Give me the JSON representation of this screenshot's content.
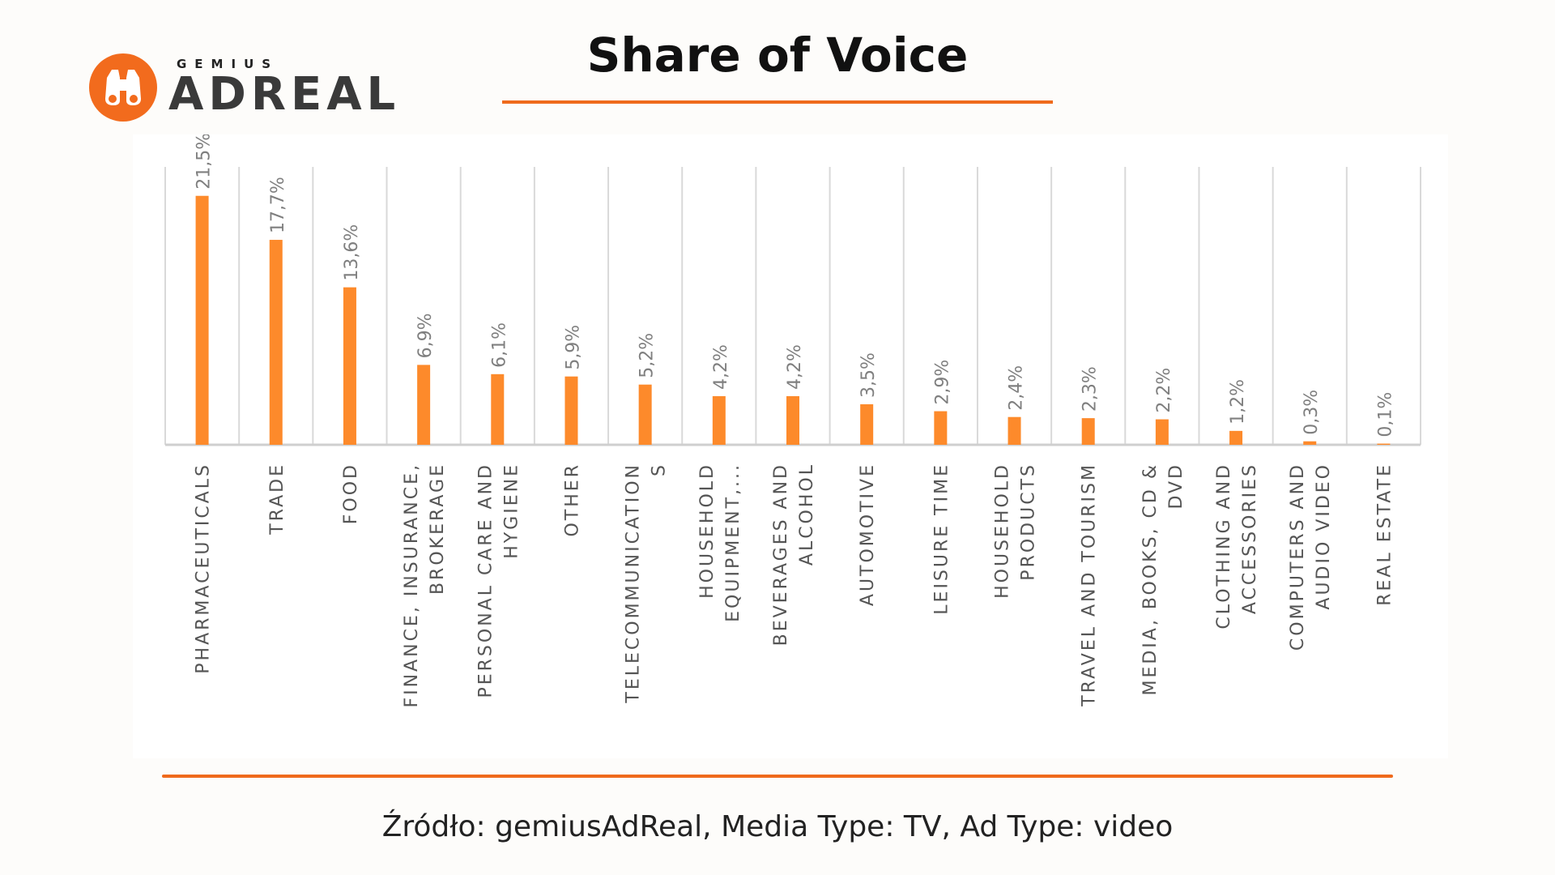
{
  "brand": {
    "small": "GEMIUS",
    "big": "ADREAL",
    "accent": "#f26b1d"
  },
  "title": "Share of Voice",
  "source": "Źródło: gemiusAdReal, Media Type: TV, Ad Type: video",
  "colors": {
    "bar": "#fd8a2b",
    "grid": "#d9d9d9",
    "axis": "#cfcfcf",
    "label": "#555555",
    "value": "#7f7f7f"
  },
  "chart_data": {
    "type": "bar",
    "title": "Share of Voice",
    "categories": [
      [
        "PHARMACEUTICALS"
      ],
      [
        "TRADE"
      ],
      [
        "FOOD"
      ],
      [
        "FINANCE, INSURANCE,",
        "BROKERAGE"
      ],
      [
        "PERSONAL CARE AND",
        "HYGIENE"
      ],
      [
        "OTHER"
      ],
      [
        "TELECOMMUNICATION",
        "S"
      ],
      [
        "HOUSEHOLD",
        "EQUIPMENT,..."
      ],
      [
        "BEVERAGES AND",
        "ALCOHOL"
      ],
      [
        "AUTOMOTIVE"
      ],
      [
        "LEISURE TIME"
      ],
      [
        "HOUSEHOLD",
        "PRODUCTS"
      ],
      [
        "TRAVEL AND TOURISM"
      ],
      [
        "MEDIA, BOOKS, CD &",
        "DVD"
      ],
      [
        "CLOTHING AND",
        "ACCESSORIES"
      ],
      [
        "COMPUTERS AND",
        "AUDIO VIDEO"
      ],
      [
        "REAL ESTATE"
      ]
    ],
    "values": [
      21.5,
      17.7,
      13.6,
      6.9,
      6.1,
      5.9,
      5.2,
      4.2,
      4.2,
      3.5,
      2.9,
      2.4,
      2.3,
      2.2,
      1.2,
      0.3,
      0.1
    ],
    "labels": [
      "21,5%",
      "17,7%",
      "13,6%",
      "6,9%",
      "6,1%",
      "5,9%",
      "5,2%",
      "4,2%",
      "4,2%",
      "3,5%",
      "2,9%",
      "2,4%",
      "2,3%",
      "2,2%",
      "1,2%",
      "0,3%",
      "0,1%"
    ],
    "ylim": [
      0,
      24
    ],
    "grid": "vertical category separators",
    "legend": "none"
  }
}
